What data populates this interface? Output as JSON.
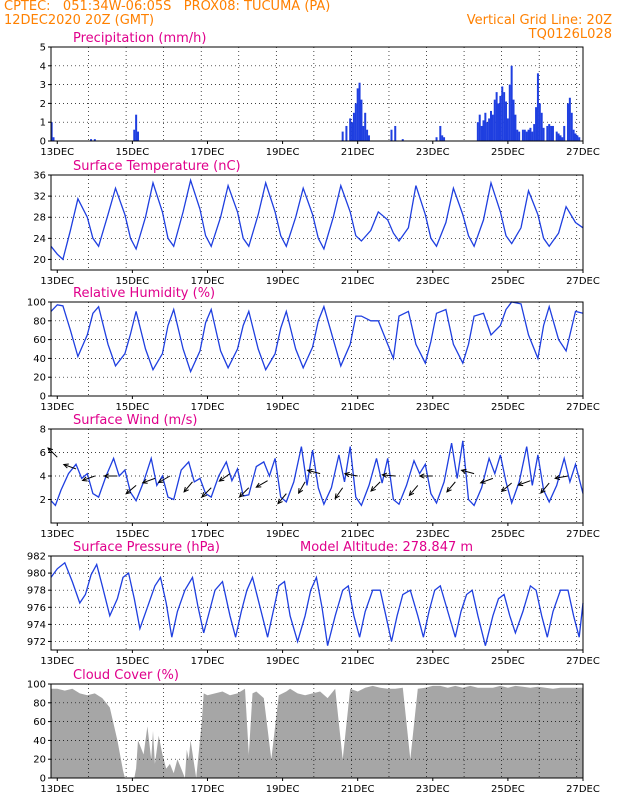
{
  "header": {
    "line1_left": "CPTEC:   051:34W-06:05S   PROX08: TUCUMA (PA)",
    "line2_left": "12DEC2020 20Z (GMT)",
    "line1_right": "Vertical Grid Line: 20Z",
    "line2_right": "TQ0126L028"
  },
  "colors": {
    "series": "#1f3fe0",
    "cloud": "#a6a6a6",
    "title": "#e0008c",
    "header": "#ff8000",
    "grid": "#000000"
  },
  "x_axis": {
    "start_day": 12.833,
    "end_day": 27.0,
    "tick_days": [
      13,
      15,
      17,
      19,
      21,
      23,
      25,
      27
    ],
    "tick_labels": [
      "13DEC",
      "15DEC",
      "17DEC",
      "19DEC",
      "21DEC",
      "23DEC",
      "25DEC",
      "27DEC"
    ],
    "grid_days": [
      13.833,
      14.833,
      15.833,
      16.833,
      17.833,
      18.833,
      19.833,
      20.833,
      21.833,
      22.833,
      23.833,
      24.833,
      25.833,
      26.833
    ]
  },
  "chart_data": [
    {
      "id": "precip",
      "type": "bar",
      "title": "Precipitation (mm/h)",
      "ylim": [
        0,
        5
      ],
      "yticks": [
        0,
        1,
        2,
        3,
        4,
        5
      ],
      "x": [
        12.85,
        12.9,
        13.9,
        14.0,
        15.05,
        15.1,
        15.15,
        20.6,
        20.7,
        20.8,
        20.85,
        20.9,
        20.95,
        21.0,
        21.05,
        21.1,
        21.15,
        21.2,
        21.25,
        21.3,
        21.9,
        22.0,
        22.2,
        23.1,
        23.2,
        23.25,
        23.3,
        24.2,
        24.25,
        24.3,
        24.35,
        24.4,
        24.45,
        24.5,
        24.55,
        24.6,
        24.65,
        24.7,
        24.75,
        24.8,
        24.85,
        24.9,
        24.95,
        25.0,
        25.05,
        25.1,
        25.15,
        25.2,
        25.25,
        25.3,
        25.4,
        25.45,
        25.5,
        25.55,
        25.6,
        25.65,
        25.7,
        25.75,
        25.8,
        25.85,
        25.9,
        25.95,
        26.05,
        26.1,
        26.15,
        26.2,
        26.3,
        26.35,
        26.4,
        26.45,
        26.5,
        26.6,
        26.65,
        26.7,
        26.75,
        26.8,
        26.85,
        26.9
      ],
      "values": [
        1.0,
        0.2,
        0.1,
        0.1,
        0.6,
        1.4,
        0.5,
        0.5,
        0.8,
        1.2,
        1.0,
        1.5,
        2.0,
        2.8,
        3.1,
        2.2,
        0.8,
        1.5,
        0.6,
        0.3,
        0.6,
        0.8,
        0.1,
        0.2,
        0.8,
        0.3,
        0.2,
        1.0,
        1.4,
        0.8,
        1.1,
        1.5,
        1.0,
        1.2,
        1.6,
        1.4,
        2.2,
        2.6,
        2.0,
        2.4,
        2.9,
        2.6,
        2.1,
        1.2,
        3.0,
        4.0,
        2.2,
        1.4,
        0.6,
        0.5,
        0.6,
        0.6,
        0.5,
        0.6,
        0.7,
        0.5,
        0.9,
        1.8,
        3.6,
        2.0,
        1.5,
        0.7,
        0.8,
        0.9,
        0.8,
        0.8,
        0.5,
        0.4,
        0.3,
        0.2,
        0.8,
        2.0,
        2.3,
        1.5,
        0.6,
        0.4,
        0.3,
        0.2
      ]
    },
    {
      "id": "temperature",
      "type": "line",
      "title": "Surface Temperature (nC)",
      "ylim": [
        18,
        36
      ],
      "yticks": [
        20,
        24,
        28,
        32,
        36
      ],
      "x": [
        12.833,
        13.0,
        13.15,
        13.35,
        13.55,
        13.8,
        13.95,
        14.1,
        14.35,
        14.55,
        14.8,
        14.95,
        15.1,
        15.35,
        15.55,
        15.8,
        15.95,
        16.1,
        16.35,
        16.55,
        16.8,
        16.95,
        17.1,
        17.35,
        17.55,
        17.8,
        17.95,
        18.1,
        18.35,
        18.55,
        18.8,
        18.95,
        19.1,
        19.35,
        19.55,
        19.8,
        19.95,
        20.1,
        20.35,
        20.55,
        20.8,
        20.95,
        21.1,
        21.35,
        21.55,
        21.8,
        21.95,
        22.1,
        22.35,
        22.55,
        22.8,
        22.95,
        23.1,
        23.35,
        23.55,
        23.8,
        23.95,
        24.1,
        24.35,
        24.55,
        24.8,
        24.95,
        25.1,
        25.35,
        25.55,
        25.8,
        25.95,
        26.1,
        26.35,
        26.55,
        26.8,
        27.0
      ],
      "values": [
        22.5,
        21.0,
        20.0,
        25.5,
        31.5,
        28.0,
        24.0,
        22.5,
        28.5,
        33.5,
        28.5,
        24.0,
        22.0,
        28.0,
        34.5,
        29.0,
        24.0,
        22.5,
        29.0,
        35.0,
        29.5,
        24.5,
        22.5,
        28.0,
        34.0,
        29.0,
        24.0,
        22.5,
        28.5,
        34.5,
        29.0,
        24.5,
        22.5,
        28.0,
        33.5,
        28.5,
        24.0,
        22.0,
        28.0,
        34.0,
        29.0,
        24.5,
        23.5,
        25.5,
        29.0,
        27.5,
        25.0,
        23.5,
        26.0,
        34.0,
        28.5,
        24.0,
        22.5,
        27.0,
        33.5,
        28.5,
        24.5,
        22.5,
        27.5,
        34.5,
        29.0,
        24.5,
        23.0,
        26.0,
        33.0,
        28.5,
        24.0,
        22.5,
        25.0,
        30.0,
        27.0,
        26.0
      ]
    },
    {
      "id": "humidity",
      "type": "line",
      "title": "Relative Humidity (%)",
      "ylim": [
        0,
        100
      ],
      "yticks": [
        0,
        20,
        40,
        60,
        80,
        100
      ],
      "x": [
        12.833,
        13.0,
        13.15,
        13.35,
        13.55,
        13.8,
        13.95,
        14.1,
        14.35,
        14.55,
        14.8,
        14.95,
        15.1,
        15.35,
        15.55,
        15.8,
        15.95,
        16.1,
        16.35,
        16.55,
        16.8,
        16.95,
        17.1,
        17.35,
        17.55,
        17.8,
        17.95,
        18.1,
        18.35,
        18.55,
        18.8,
        18.95,
        19.1,
        19.35,
        19.55,
        19.8,
        19.95,
        20.1,
        20.35,
        20.55,
        20.8,
        20.95,
        21.1,
        21.35,
        21.55,
        21.8,
        21.95,
        22.1,
        22.35,
        22.55,
        22.8,
        22.95,
        23.1,
        23.35,
        23.55,
        23.8,
        23.95,
        24.1,
        24.35,
        24.55,
        24.8,
        24.95,
        25.1,
        25.35,
        25.55,
        25.8,
        25.95,
        26.1,
        26.35,
        26.55,
        26.8,
        27.0
      ],
      "values": [
        90,
        97,
        96,
        70,
        42,
        65,
        88,
        95,
        55,
        32,
        45,
        66,
        90,
        50,
        28,
        45,
        75,
        92,
        50,
        26,
        48,
        78,
        92,
        48,
        30,
        50,
        75,
        90,
        50,
        28,
        45,
        72,
        90,
        50,
        30,
        52,
        80,
        95,
        60,
        32,
        55,
        85,
        85,
        80,
        80,
        55,
        40,
        85,
        90,
        55,
        35,
        58,
        88,
        92,
        55,
        35,
        55,
        85,
        88,
        65,
        75,
        92,
        100,
        98,
        65,
        40,
        75,
        95,
        60,
        48,
        90,
        88
      ]
    },
    {
      "id": "wind",
      "type": "line",
      "title": "Surface Wind (m/s)",
      "ylim": [
        0,
        8
      ],
      "yticks": [
        2,
        4,
        6,
        8
      ],
      "x": [
        12.833,
        12.95,
        13.1,
        13.3,
        13.5,
        13.65,
        13.8,
        13.95,
        14.1,
        14.3,
        14.5,
        14.65,
        14.8,
        14.95,
        15.1,
        15.3,
        15.5,
        15.65,
        15.8,
        15.95,
        16.1,
        16.3,
        16.5,
        16.65,
        16.8,
        16.95,
        17.1,
        17.3,
        17.5,
        17.65,
        17.8,
        17.95,
        18.1,
        18.3,
        18.5,
        18.65,
        18.8,
        18.95,
        19.1,
        19.3,
        19.5,
        19.65,
        19.8,
        19.95,
        20.1,
        20.3,
        20.5,
        20.65,
        20.8,
        20.95,
        21.1,
        21.3,
        21.5,
        21.65,
        21.8,
        21.95,
        22.1,
        22.3,
        22.5,
        22.65,
        22.8,
        22.95,
        23.1,
        23.3,
        23.5,
        23.65,
        23.8,
        23.95,
        24.1,
        24.3,
        24.5,
        24.65,
        24.8,
        24.95,
        25.1,
        25.3,
        25.5,
        25.65,
        25.8,
        25.95,
        26.1,
        26.3,
        26.5,
        26.65,
        26.8,
        27.0
      ],
      "values": [
        1.9,
        1.5,
        2.8,
        4.2,
        5.0,
        3.8,
        4.2,
        2.5,
        2.2,
        4.0,
        5.5,
        4.0,
        4.5,
        2.6,
        1.9,
        3.5,
        5.5,
        3.2,
        4.0,
        2.2,
        2.0,
        4.5,
        5.2,
        3.5,
        3.8,
        2.5,
        2.2,
        4.0,
        5.2,
        3.6,
        4.6,
        2.3,
        2.4,
        4.8,
        5.2,
        4.0,
        5.5,
        2.2,
        1.8,
        3.5,
        6.5,
        3.2,
        6.2,
        3.0,
        1.6,
        3.0,
        5.8,
        3.5,
        6.5,
        2.2,
        1.5,
        3.2,
        5.5,
        3.4,
        5.5,
        2.0,
        1.6,
        3.2,
        5.3,
        4.2,
        5.0,
        2.5,
        1.7,
        3.5,
        6.8,
        3.8,
        7.0,
        2.0,
        1.5,
        3.0,
        5.5,
        4.2,
        5.8,
        3.5,
        1.7,
        3.5,
        6.5,
        3.2,
        5.8,
        2.8,
        1.8,
        3.2,
        5.5,
        3.5,
        5.0,
        2.5
      ]
    },
    {
      "id": "pressure",
      "type": "line",
      "title": "Surface Pressure (hPa)",
      "subtitle": "Model Altitude: 278.847  m",
      "ylim": [
        971,
        982
      ],
      "yticks": [
        972,
        974,
        976,
        978,
        980,
        982
      ],
      "x": [
        12.833,
        13.0,
        13.2,
        13.4,
        13.6,
        13.75,
        13.9,
        14.05,
        14.2,
        14.4,
        14.6,
        14.75,
        14.9,
        15.05,
        15.2,
        15.4,
        15.6,
        15.75,
        15.9,
        16.05,
        16.2,
        16.4,
        16.6,
        16.75,
        16.9,
        17.05,
        17.2,
        17.4,
        17.6,
        17.75,
        17.9,
        18.05,
        18.2,
        18.4,
        18.6,
        18.75,
        18.9,
        19.05,
        19.2,
        19.4,
        19.6,
        19.75,
        19.9,
        20.05,
        20.2,
        20.4,
        20.6,
        20.75,
        20.9,
        21.05,
        21.2,
        21.4,
        21.6,
        21.75,
        21.9,
        22.05,
        22.2,
        22.4,
        22.6,
        22.75,
        22.9,
        23.05,
        23.2,
        23.4,
        23.6,
        23.75,
        23.9,
        24.05,
        24.2,
        24.4,
        24.6,
        24.75,
        24.9,
        25.05,
        25.2,
        25.4,
        25.6,
        25.75,
        25.9,
        26.05,
        26.2,
        26.4,
        26.6,
        26.75,
        26.9,
        27.0
      ],
      "values": [
        979.5,
        980.5,
        981.2,
        979.0,
        976.5,
        977.5,
        979.8,
        981.0,
        978.5,
        975.0,
        977.0,
        979.5,
        980.0,
        977.0,
        973.5,
        976.0,
        978.5,
        979.5,
        976.5,
        972.5,
        975.5,
        978.0,
        979.5,
        976.0,
        973.0,
        975.5,
        978.0,
        979.0,
        975.0,
        972.5,
        975.5,
        978.0,
        979.5,
        976.0,
        972.5,
        975.5,
        978.5,
        979.0,
        975.0,
        972.0,
        975.0,
        978.0,
        979.5,
        976.0,
        971.5,
        975.0,
        978.0,
        978.5,
        975.0,
        972.5,
        975.5,
        978.0,
        978.0,
        975.0,
        972.0,
        975.0,
        977.5,
        978.0,
        975.0,
        972.5,
        975.5,
        978.0,
        978.5,
        975.5,
        972.5,
        975.5,
        977.5,
        978.0,
        975.0,
        971.5,
        975.0,
        977.0,
        977.5,
        975.0,
        973.0,
        975.5,
        978.5,
        978.0,
        975.0,
        972.5,
        975.5,
        978.0,
        978.0,
        975.0,
        972.5,
        976.5
      ]
    },
    {
      "id": "cloud",
      "type": "area",
      "title": "Cloud Cover (%)",
      "ylim": [
        0,
        100
      ],
      "yticks": [
        0,
        20,
        40,
        60,
        80,
        100
      ],
      "x": [
        12.833,
        13.0,
        13.2,
        13.4,
        13.6,
        13.8,
        14.0,
        14.2,
        14.4,
        14.6,
        14.75,
        14.8,
        15.0,
        15.05,
        15.1,
        15.15,
        15.2,
        15.3,
        15.4,
        15.5,
        15.55,
        15.6,
        15.7,
        15.8,
        15.9,
        16.0,
        16.1,
        16.2,
        16.3,
        16.4,
        16.45,
        16.5,
        16.55,
        16.7,
        16.85,
        16.9,
        17.0,
        17.2,
        17.4,
        17.6,
        17.8,
        18.0,
        18.1,
        18.2,
        18.3,
        18.5,
        18.7,
        18.9,
        19.1,
        19.2,
        19.4,
        19.6,
        19.8,
        20.0,
        20.2,
        20.4,
        20.6,
        20.8,
        21.0,
        21.2,
        21.4,
        21.6,
        21.8,
        22.0,
        22.2,
        22.4,
        22.6,
        22.8,
        23.0,
        23.2,
        23.4,
        23.6,
        23.8,
        24.0,
        24.2,
        24.4,
        24.6,
        24.8,
        25.0,
        25.2,
        25.4,
        25.6,
        25.8,
        26.0,
        26.2,
        26.4,
        26.6,
        26.8,
        27.0
      ],
      "values": [
        95,
        95,
        93,
        95,
        90,
        88,
        90,
        85,
        75,
        40,
        8,
        0,
        0,
        0,
        10,
        40,
        35,
        25,
        55,
        20,
        50,
        15,
        45,
        25,
        10,
        15,
        5,
        20,
        10,
        0,
        30,
        20,
        40,
        0,
        60,
        90,
        88,
        90,
        92,
        88,
        90,
        95,
        25,
        90,
        92,
        85,
        20,
        88,
        92,
        95,
        90,
        88,
        90,
        92,
        85,
        95,
        20,
        95,
        92,
        96,
        98,
        96,
        95,
        95,
        96,
        20,
        95,
        96,
        98,
        98,
        96,
        98,
        96,
        98,
        96,
        96,
        96,
        98,
        96,
        98,
        97,
        96,
        97,
        96,
        95,
        96,
        96,
        96,
        96
      ]
    }
  ],
  "wind_arrows": [
    {
      "x": 13.0,
      "y": 5.6,
      "dir": 135
    },
    {
      "x": 13.5,
      "y": 4.6,
      "dir": 160
    },
    {
      "x": 14.0,
      "y": 4.0,
      "dir": 200
    },
    {
      "x": 14.6,
      "y": 4.0,
      "dir": 180
    },
    {
      "x": 15.1,
      "y": 3.2,
      "dir": 220
    },
    {
      "x": 15.6,
      "y": 3.8,
      "dir": 200
    },
    {
      "x": 16.0,
      "y": 4.0,
      "dir": 210
    },
    {
      "x": 16.6,
      "y": 3.5,
      "dir": 230
    },
    {
      "x": 17.1,
      "y": 3.0,
      "dir": 225
    },
    {
      "x": 17.6,
      "y": 4.2,
      "dir": 215
    },
    {
      "x": 18.1,
      "y": 3.0,
      "dir": 225
    },
    {
      "x": 18.6,
      "y": 3.6,
      "dir": 210
    },
    {
      "x": 19.1,
      "y": 2.5,
      "dir": 230
    },
    {
      "x": 19.6,
      "y": 3.5,
      "dir": 240
    },
    {
      "x": 20.0,
      "y": 4.2,
      "dir": 165
    },
    {
      "x": 20.6,
      "y": 3.0,
      "dir": 235
    },
    {
      "x": 21.0,
      "y": 4.0,
      "dir": 170
    },
    {
      "x": 21.6,
      "y": 3.5,
      "dir": 225
    },
    {
      "x": 22.0,
      "y": 4.0,
      "dir": 175
    },
    {
      "x": 22.6,
      "y": 3.2,
      "dir": 230
    },
    {
      "x": 23.0,
      "y": 4.0,
      "dir": 180
    },
    {
      "x": 23.6,
      "y": 3.5,
      "dir": 230
    },
    {
      "x": 24.1,
      "y": 4.2,
      "dir": 165
    },
    {
      "x": 24.6,
      "y": 3.8,
      "dir": 200
    },
    {
      "x": 25.1,
      "y": 3.4,
      "dir": 220
    },
    {
      "x": 25.6,
      "y": 3.6,
      "dir": 200
    },
    {
      "x": 26.1,
      "y": 3.4,
      "dir": 230
    },
    {
      "x": 26.6,
      "y": 4.0,
      "dir": 190
    }
  ]
}
